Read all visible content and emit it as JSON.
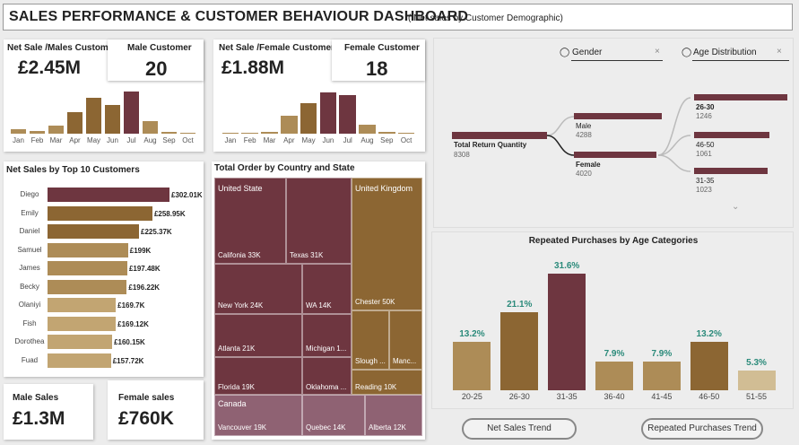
{
  "header": {
    "title": "SALES PERFORMANCE & CUSTOMER BEHAVIOUR DASHBOARD",
    "subtitle": "( Net sales by Customer Demographic)"
  },
  "male_panel": {
    "net_sale_label": "Net Sale /Males Customer",
    "net_sale_value": "£2.45M",
    "count_label": "Male Customer",
    "count_value": "20",
    "months": [
      "Jan",
      "Feb",
      "Mar",
      "Apr",
      "May",
      "Jun",
      "Jul",
      "Aug",
      "Sep",
      "Oct"
    ],
    "monthly_levels": [
      0.1,
      0.07,
      0.2,
      0.52,
      0.86,
      0.68,
      1.0,
      0.3,
      0.04,
      0.01
    ]
  },
  "female_panel": {
    "net_sale_label": "Net Sale /Female Customer",
    "net_sale_value": "£1.88M",
    "count_label": "Female Customer",
    "count_value": "18",
    "months": [
      "Jan",
      "Feb",
      "Mar",
      "Apr",
      "May",
      "Jun",
      "Jul",
      "Aug",
      "Sep",
      "Oct"
    ],
    "monthly_levels": [
      0.03,
      0.03,
      0.04,
      0.42,
      0.72,
      0.98,
      0.92,
      0.22,
      0.05,
      0.01
    ]
  },
  "top_customers": {
    "title": "Net Sales by Top 10 Customers",
    "items": [
      {
        "name": "Diego",
        "value": "£302.01K",
        "level": 1.0
      },
      {
        "name": "Emily",
        "value": "£258.95K",
        "level": 0.86
      },
      {
        "name": "Daniel",
        "value": "£225.37K",
        "level": 0.75
      },
      {
        "name": "Samuel",
        "value": "£199K",
        "level": 0.66
      },
      {
        "name": "James",
        "value": "£197.48K",
        "level": 0.654
      },
      {
        "name": "Becky",
        "value": "£196.22K",
        "level": 0.65
      },
      {
        "name": "Olaniyi",
        "value": "£169.7K",
        "level": 0.56
      },
      {
        "name": "Fish",
        "value": "£169.12K",
        "level": 0.56
      },
      {
        "name": "Dorothea",
        "value": "£160.15K",
        "level": 0.53
      },
      {
        "name": "Fuad",
        "value": "£157.72K",
        "level": 0.52
      }
    ]
  },
  "treemap": {
    "title": "Total Order by Country and State",
    "us_label": "United State",
    "uk_label": "United Kingdom",
    "canada_label": "Canada",
    "cells": {
      "california": "Califonia 33K",
      "texas": "Texas 31K",
      "newyork": "New York 24K",
      "wa": "WA 14K",
      "atlanta": "Atlanta 21K",
      "michigan": "Michigan 1...",
      "florida": "Florida 19K",
      "oklahoma": "Oklahoma ...",
      "chester": "Chester 50K",
      "slough": "Slough ...",
      "manc": "Manc...",
      "reading": "Reading 10K",
      "vancouver": "Vancouver 19K",
      "quebec": "Quebec 14K",
      "alberta": "Alberta 12K"
    }
  },
  "kpis": {
    "male_sales_label": "Male Sales",
    "male_sales_value": "£1.3M",
    "female_sales_label": "Female sales",
    "female_sales_value": "£760K"
  },
  "decomposition": {
    "slicer_gender": "Gender",
    "slicer_age": "Age Distribution",
    "root_label": "Total Return Quantity",
    "root_value": "8308",
    "male_label": "Male",
    "male_value": "4288",
    "female_label": "Female",
    "female_value": "4020",
    "age1_label": "26-30",
    "age1_value": "1246",
    "age2_label": "46-50",
    "age2_value": "1061",
    "age3_label": "31-35",
    "age3_value": "1023"
  },
  "repeat_chart": {
    "title": "Repeated Purchases by Age Categories",
    "categories": [
      "20-25",
      "26-30",
      "31-35",
      "36-40",
      "41-45",
      "46-50",
      "51-55"
    ],
    "values": [
      "13.2%",
      "21.1%",
      "31.6%",
      "7.9%",
      "7.9%",
      "13.2%",
      "5.3%"
    ],
    "numeric": [
      13.2,
      21.1,
      31.6,
      7.9,
      7.9,
      13.2,
      5.3
    ]
  },
  "buttons": {
    "net_sales_trend": "Net Sales Trend",
    "repeated_trend": "Repeated Purchases Trend"
  },
  "colors": {
    "maroon": "#6e3640",
    "brown": "#8c6633",
    "tan": "#ad8c57",
    "light_tan": "#c2a572",
    "pale": "#d1bd94",
    "teal_text": "#2a8a7a",
    "canada": "#8f6273"
  }
}
